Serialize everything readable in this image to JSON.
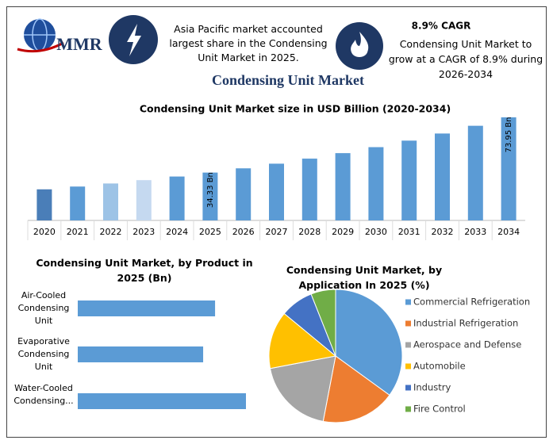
{
  "header": {
    "logo": "MMR",
    "highlight": "Asia Pacific market accounted largest share in the Condensing Unit Market in 2025.",
    "cagr_title": "8.9% CAGR",
    "cagr_text": "Condensing Unit Market to grow at a CAGR of 8.9% during 2026-2034"
  },
  "title": "Condensing Unit Market",
  "chart_data": [
    {
      "type": "bar",
      "title": "Condensing Unit Market size in USD Billion (2020-2034)",
      "categories": [
        "2020",
        "2021",
        "2022",
        "2023",
        "2024",
        "2025",
        "2026",
        "2027",
        "2028",
        "2029",
        "2030",
        "2031",
        "2032",
        "2033",
        "2034"
      ],
      "values": [
        22.3,
        24.3,
        26.5,
        28.9,
        31.5,
        34.33,
        37.38,
        40.71,
        44.33,
        48.28,
        52.57,
        57.25,
        62.35,
        67.9,
        73.95
      ],
      "value_labels": [
        null,
        null,
        null,
        null,
        null,
        "34.33 Bn",
        null,
        null,
        null,
        null,
        null,
        null,
        null,
        null,
        "73.95 Bn"
      ],
      "colors": [
        "#4a7eb8",
        "#5b9bd5",
        "#9dc3e6",
        "#c5d9f0",
        "#5b9bd5",
        "#5b9bd5",
        "#5b9bd5",
        "#5b9bd5",
        "#5b9bd5",
        "#5b9bd5",
        "#5b9bd5",
        "#5b9bd5",
        "#5b9bd5",
        "#5b9bd5",
        "#5b9bd5"
      ]
    },
    {
      "type": "hbar",
      "title": "Condensing Unit Market, by Product in 2025 (Bn)",
      "categories": [
        "Air-Cooled Condensing Unit",
        "Evaporative Condensing Unit",
        "Water-Cooled Condensing..."
      ],
      "values": [
        10.94,
        9.99,
        13.4
      ],
      "color": "#5b9bd5"
    },
    {
      "type": "pie",
      "title": "Condensing Unit Market, by Application In 2025 (%)",
      "categories": [
        "Commercial Refrigeration",
        "Industrial Refrigeration",
        "Aerospace and Defense",
        "Automobile",
        "Industry",
        "Fire Control"
      ],
      "values": [
        35,
        18,
        19,
        14,
        8,
        6
      ],
      "colors": [
        "#5b9bd5",
        "#ed7d31",
        "#a5a5a5",
        "#ffc000",
        "#4472c4",
        "#70ad47"
      ],
      "legend": "right"
    }
  ]
}
